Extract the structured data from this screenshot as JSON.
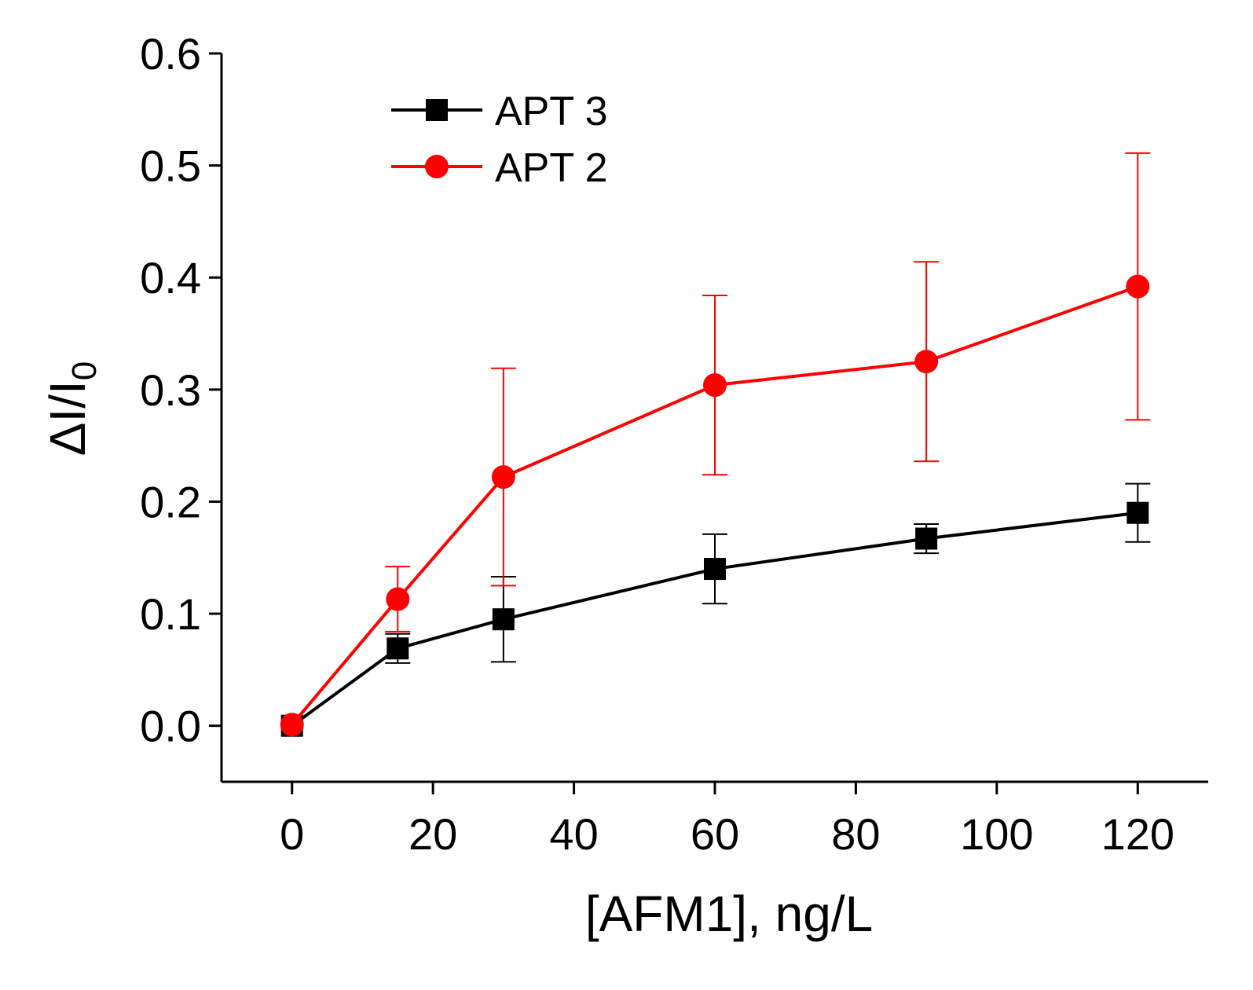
{
  "chart_data": {
    "type": "line",
    "title": "",
    "xlabel": "[AFM1], ng/L",
    "ylabel_main": "ΔI/I",
    "ylabel_sub": "0",
    "xlim": [
      -10,
      130
    ],
    "ylim": [
      -0.05,
      0.6
    ],
    "xticks": [
      0,
      20,
      40,
      60,
      80,
      100,
      120
    ],
    "xtick_labels": [
      "0",
      "20",
      "40",
      "60",
      "80",
      "100",
      "120"
    ],
    "yticks": [
      0.0,
      0.1,
      0.2,
      0.3,
      0.4,
      0.5,
      0.6
    ],
    "ytick_labels": [
      "0.0",
      "0.1",
      "0.2",
      "0.3",
      "0.4",
      "0.5",
      "0.6"
    ],
    "grid": false,
    "legend_position": "top-left",
    "series": [
      {
        "name": "APT 3",
        "color": "#000000",
        "marker": "square",
        "x": [
          0,
          15,
          30,
          60,
          90,
          120
        ],
        "y": [
          0.0,
          0.069,
          0.095,
          0.14,
          0.167,
          0.19
        ],
        "err": [
          0.0,
          0.013,
          0.038,
          0.031,
          0.013,
          0.026
        ]
      },
      {
        "name": "APT 2",
        "color": "#ff0000",
        "marker": "circle",
        "x": [
          0,
          15,
          30,
          60,
          90,
          120
        ],
        "y": [
          0.001,
          0.113,
          0.222,
          0.304,
          0.325,
          0.392
        ],
        "err": [
          0.0,
          0.029,
          0.097,
          0.08,
          0.089,
          0.119
        ]
      }
    ]
  }
}
